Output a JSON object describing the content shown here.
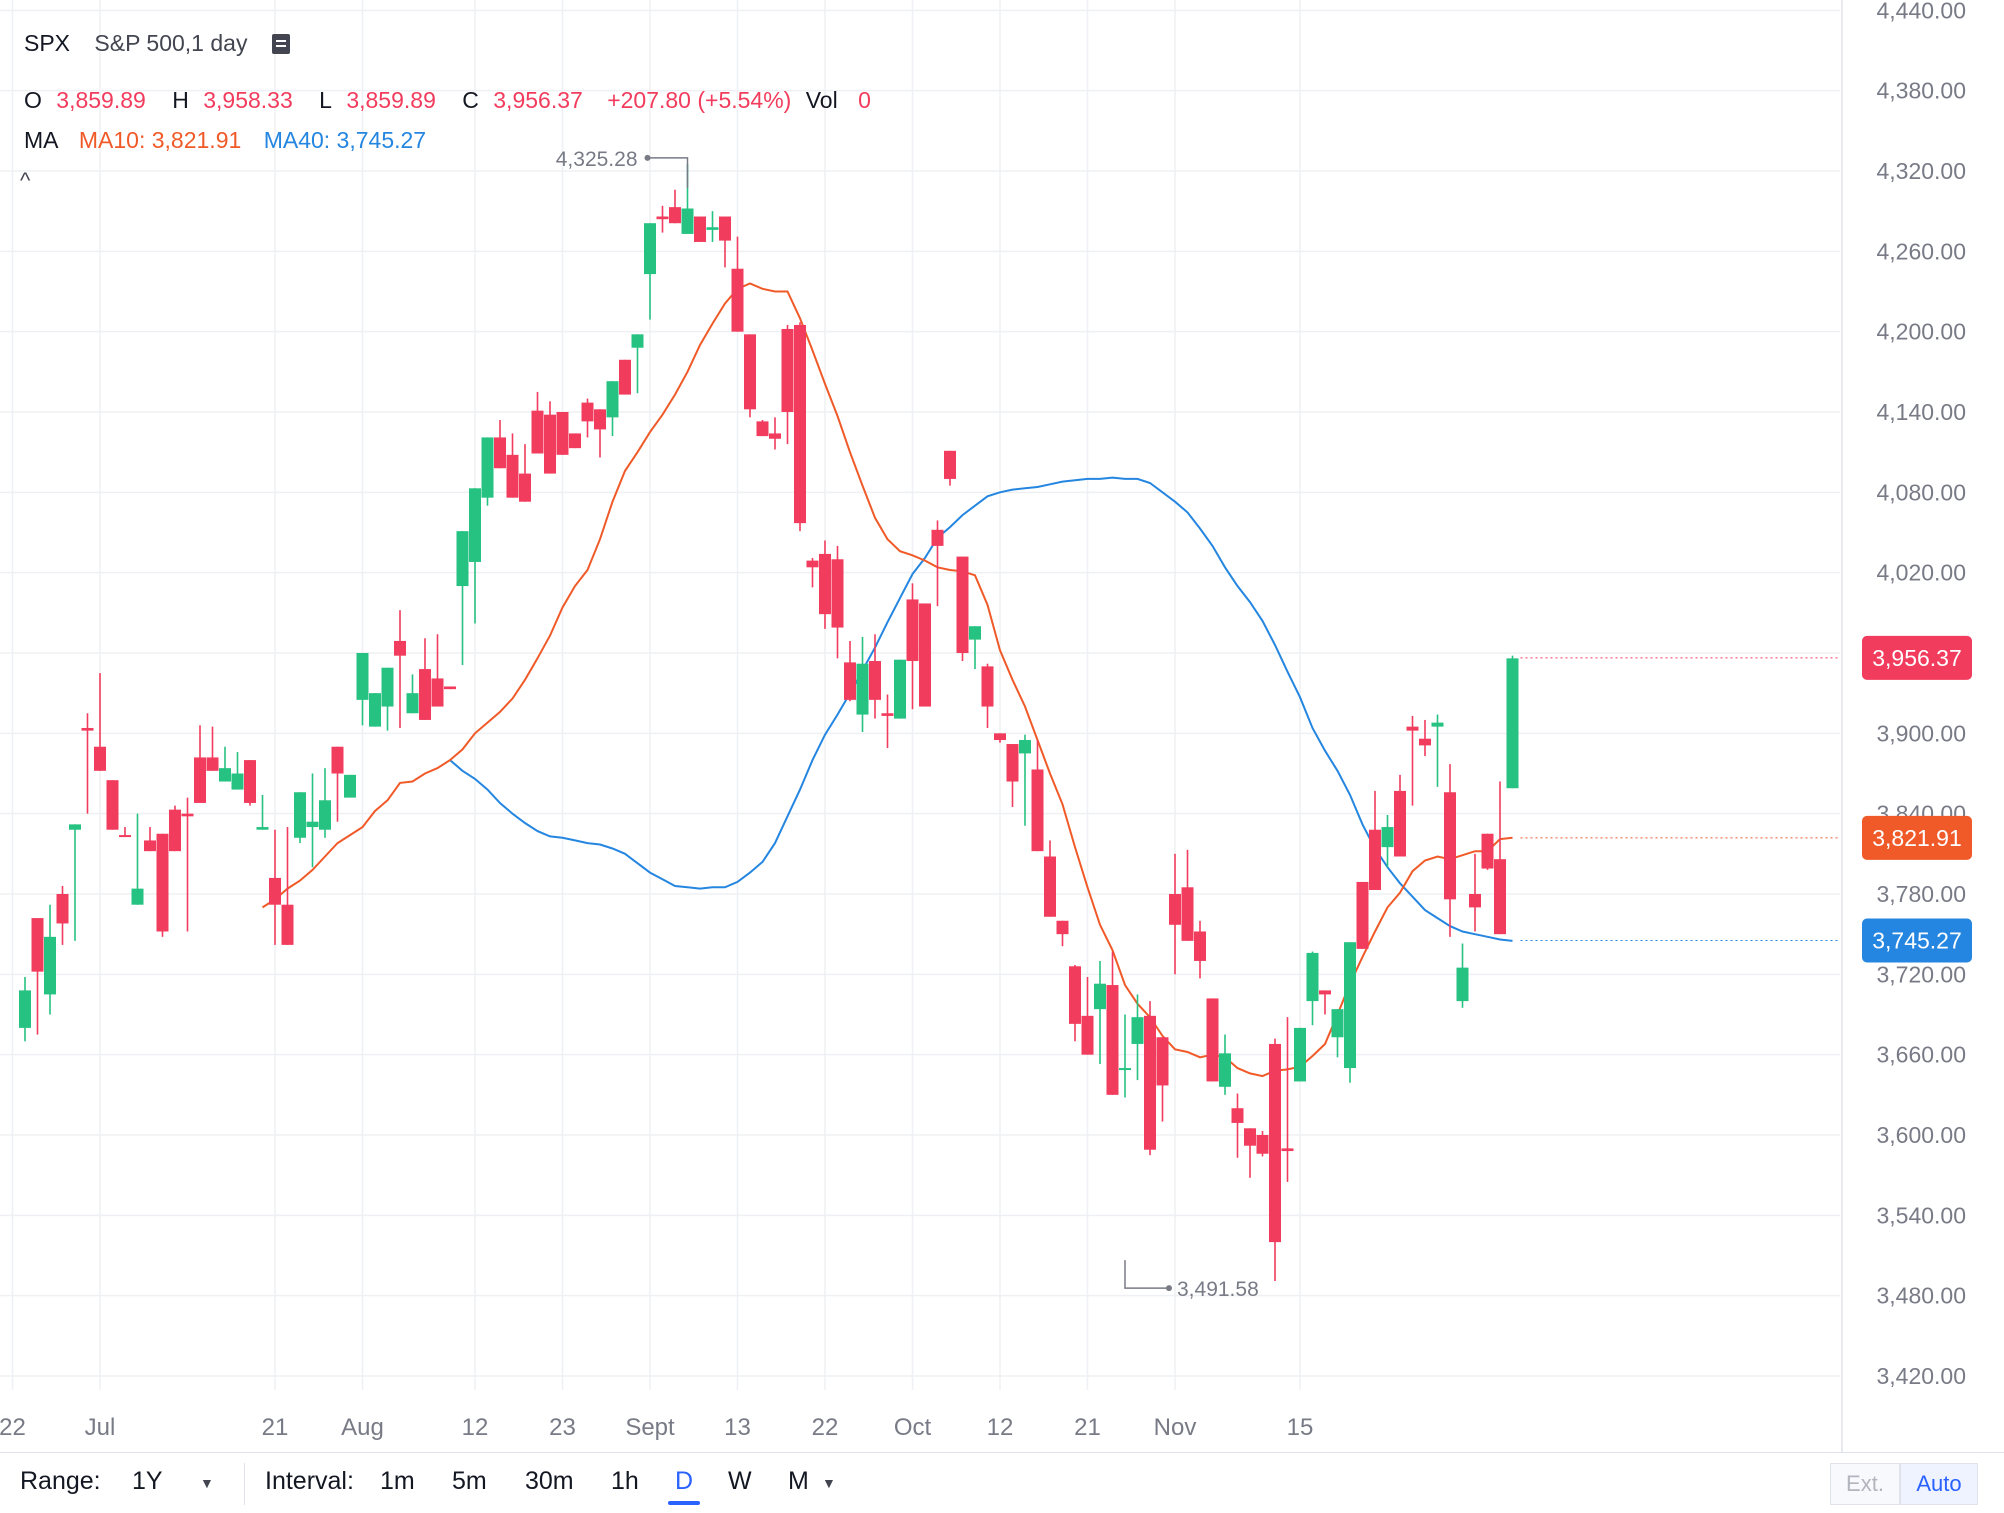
{
  "header": {
    "symbol": "SPX",
    "description": "S&P 500,1 day",
    "ohlc": {
      "o_label": "O",
      "o_value": "3,859.89",
      "h_label": "H",
      "h_value": "3,958.33",
      "l_label": "L",
      "l_value": "3,859.89",
      "c_label": "C",
      "c_value": "3,956.37",
      "change": "+207.80 (+5.54%)",
      "vol_label": "Vol",
      "vol_value": "0"
    },
    "ma": {
      "label": "MA",
      "ma10": "MA10: 3,821.91",
      "ma40": "MA40: 3,745.27"
    },
    "collapse_glyph": "^"
  },
  "colors": {
    "up": "#26c281",
    "down": "#f23c5d",
    "ma10": "#f05a28",
    "ma40": "#2486e0",
    "grid": "#eef0f4",
    "text_muted": "#787b86"
  },
  "chart_data": {
    "type": "candlestick",
    "ylim": [
      3395,
      4445
    ],
    "y_ticks": [
      "3,420.00",
      "3,480.00",
      "3,540.00",
      "3,600.00",
      "3,660.00",
      "3,720.00",
      "3,780.00",
      "3,840.00",
      "3,900.00",
      "3,960.00",
      "4,020.00",
      "4,080.00",
      "4,140.00",
      "4,200.00",
      "4,260.00",
      "4,320.00",
      "4,380.00",
      "4,440.00"
    ],
    "x_labels": [
      {
        "label": "22",
        "i": -1
      },
      {
        "label": "Jul",
        "i": 6
      },
      {
        "label": "21",
        "i": 20
      },
      {
        "label": "Aug",
        "i": 27
      },
      {
        "label": "12",
        "i": 36
      },
      {
        "label": "23",
        "i": 43
      },
      {
        "label": "Sept",
        "i": 50
      },
      {
        "label": "13",
        "i": 57
      },
      {
        "label": "22",
        "i": 64
      },
      {
        "label": "Oct",
        "i": 71
      },
      {
        "label": "12",
        "i": 78
      },
      {
        "label": "21",
        "i": 85
      },
      {
        "label": "Nov",
        "i": 92
      },
      {
        "label": "15",
        "i": 102
      }
    ],
    "candles": [
      [
        3680,
        3718,
        3670,
        3708
      ],
      [
        3762,
        3762,
        3675,
        3722
      ],
      [
        3705,
        3772,
        3690,
        3748
      ],
      [
        3780,
        3786,
        3742,
        3758
      ],
      [
        3828,
        3828,
        3745,
        3832
      ],
      [
        3904,
        3915,
        3840,
        3902
      ],
      [
        3890,
        3945,
        3880,
        3872
      ],
      [
        3865,
        3865,
        3836,
        3828
      ],
      [
        3824,
        3830,
        3824,
        3823
      ],
      [
        3772,
        3840,
        3830,
        3784
      ],
      [
        3820,
        3830,
        3834,
        3812
      ],
      [
        3825,
        3814,
        3748,
        3752
      ],
      [
        3843,
        3846,
        3828,
        3812
      ],
      [
        3840,
        3852,
        3752,
        3838
      ],
      [
        3882,
        3906,
        3862,
        3848
      ],
      [
        3882,
        3905,
        3886,
        3872
      ],
      [
        3864,
        3890,
        3888,
        3874
      ],
      [
        3858,
        3886,
        3882,
        3870
      ],
      [
        3880,
        3874,
        3846,
        3848
      ],
      [
        3828,
        3854,
        3830,
        3830
      ],
      [
        3792,
        3828,
        3742,
        3772
      ],
      [
        3772,
        3830,
        3816,
        3742
      ],
      [
        3822,
        3832,
        3818,
        3856
      ],
      [
        3830,
        3870,
        3800,
        3834
      ],
      [
        3828,
        3874,
        3822,
        3850
      ],
      [
        3890,
        3888,
        3834,
        3870
      ],
      [
        3852,
        3850,
        3854,
        3869
      ],
      [
        3925,
        3924,
        3906,
        3960
      ],
      [
        3905,
        3924,
        3922,
        3930
      ],
      [
        3920,
        3930,
        3902,
        3949
      ],
      [
        3969,
        3992,
        3904,
        3958
      ],
      [
        3915,
        3944,
        3952,
        3930
      ],
      [
        3948,
        3971,
        3940,
        3910
      ],
      [
        3941,
        3974,
        3953,
        3920
      ],
      [
        3935,
        3934,
        3933,
        3933
      ],
      [
        4010,
        3990,
        3951,
        4051
      ],
      [
        4028,
        4051,
        3982,
        4083
      ],
      [
        4076,
        4084,
        4070,
        4121
      ],
      [
        4121,
        4134,
        4117,
        4098
      ],
      [
        4108,
        4124,
        4083,
        4076
      ],
      [
        4094,
        4116,
        4078,
        4073
      ],
      [
        4141,
        4155,
        4125,
        4109
      ],
      [
        4138,
        4148,
        4143,
        4094
      ],
      [
        4140,
        4123,
        4119,
        4108
      ],
      [
        4124,
        4123,
        4120,
        4113
      ],
      [
        4147,
        4150,
        4121,
        4133
      ],
      [
        4142,
        4131,
        4106,
        4127
      ],
      [
        4136,
        4152,
        4122,
        4163
      ],
      [
        4179,
        4178,
        4170,
        4153
      ],
      [
        4188,
        4176,
        4154,
        4198
      ],
      [
        4243,
        4234,
        4209,
        4281
      ],
      [
        4286,
        4294,
        4274,
        4284
      ],
      [
        4293,
        4306,
        4285,
        4281
      ],
      [
        4273,
        4325,
        4275,
        4292
      ],
      [
        4286,
        4286,
        4277,
        4267
      ],
      [
        4276,
        4290,
        4267,
        4278
      ],
      [
        4286,
        4282,
        4248,
        4268
      ],
      [
        4247,
        4271,
        4237,
        4200
      ],
      [
        4198,
        4198,
        4136,
        4142
      ],
      [
        4133,
        4134,
        4126,
        4122
      ],
      [
        4124,
        4136,
        4112,
        4120
      ],
      [
        4202,
        4205,
        4116,
        4140
      ],
      [
        4205,
        4207,
        4051,
        4057
      ],
      [
        4029,
        4031,
        4009,
        4024
      ],
      [
        4034,
        4044,
        3978,
        3989
      ],
      [
        4030,
        4040,
        3956,
        3979
      ],
      [
        3953,
        3969,
        3924,
        3925
      ],
      [
        3914,
        3972,
        3901,
        3952
      ],
      [
        3954,
        3974,
        3911,
        3925
      ],
      [
        3915,
        3929,
        3889,
        3913
      ],
      [
        3911,
        3933,
        3914,
        3955
      ],
      [
        4000,
        4012,
        3918,
        3954
      ],
      [
        3997,
        3971,
        3960,
        3920
      ],
      [
        4052,
        4059,
        3995,
        4040
      ],
      [
        4111,
        4102,
        4085,
        4090
      ],
      [
        4032,
        4013,
        3954,
        3960
      ],
      [
        3970,
        3970,
        3948,
        3980
      ],
      [
        3950,
        3952,
        3904,
        3920
      ],
      [
        3900,
        3894,
        3893,
        3895
      ],
      [
        3892,
        3885,
        3845,
        3864
      ],
      [
        3885,
        3899,
        3831,
        3895
      ],
      [
        3873,
        3895,
        3869,
        3812
      ],
      [
        3808,
        3820,
        3798,
        3763
      ],
      [
        3760,
        3758,
        3741,
        3750
      ],
      [
        3726,
        3727,
        3670,
        3683
      ],
      [
        3689,
        3718,
        3677,
        3660
      ],
      [
        3694,
        3730,
        3653,
        3713
      ],
      [
        3712,
        3737,
        3638,
        3630
      ],
      [
        3650,
        3690,
        3628,
        3650
      ],
      [
        3668,
        3705,
        3641,
        3688
      ],
      [
        3689,
        3700,
        3585,
        3589
      ],
      [
        3673,
        3657,
        3610,
        3637
      ],
      [
        3780,
        3810,
        3720,
        3757
      ],
      [
        3785,
        3813,
        3763,
        3745
      ],
      [
        3752,
        3760,
        3717,
        3730
      ],
      [
        3702,
        3701,
        3654,
        3640
      ],
      [
        3636,
        3675,
        3630,
        3661
      ],
      [
        3620,
        3631,
        3583,
        3609
      ],
      [
        3605,
        3605,
        3568,
        3592
      ],
      [
        3600,
        3603,
        3584,
        3586
      ],
      [
        3668,
        3672,
        3491,
        3520
      ],
      [
        3590,
        3688,
        3565,
        3588
      ],
      [
        3640,
        3668,
        3658,
        3680
      ],
      [
        3700,
        3737,
        3682,
        3736
      ],
      [
        3708,
        3706,
        3690,
        3705
      ],
      [
        3673,
        3680,
        3658,
        3694
      ],
      [
        3650,
        3718,
        3639,
        3744
      ],
      [
        3789,
        3763,
        3743,
        3739
      ],
      [
        3828,
        3857,
        3783,
        3783
      ],
      [
        3815,
        3839,
        3800,
        3830
      ],
      [
        3857,
        3869,
        3808,
        3808
      ],
      [
        3905,
        3913,
        3846,
        3902
      ],
      [
        3896,
        3910,
        3883,
        3891
      ],
      [
        3905,
        3914,
        3860,
        3908
      ],
      [
        3856,
        3877,
        3748,
        3776
      ],
      [
        3700,
        3743,
        3695,
        3725
      ],
      [
        3780,
        3810,
        3752,
        3770
      ],
      [
        3825,
        3822,
        3798,
        3799
      ],
      [
        3806,
        3864,
        3760,
        3750
      ],
      [
        3859,
        3958,
        3859,
        3956
      ]
    ],
    "ma10": [
      3770,
      3776,
      3784,
      3790,
      3798,
      3808,
      3818,
      3824,
      3830,
      3842,
      3850,
      3863,
      3864,
      3870,
      3874,
      3880,
      3888,
      3900,
      3908,
      3916,
      3926,
      3940,
      3956,
      3973,
      3994,
      4010,
      4022,
      4045,
      4073,
      4096,
      4110,
      4125,
      4138,
      4153,
      4170,
      4190,
      4206,
      4221,
      4232,
      4236,
      4232,
      4230,
      4230,
      4210,
      4186,
      4161,
      4137,
      4110,
      4085,
      4061,
      4045,
      4036,
      4033,
      4029,
      4024,
      4022,
      4021,
      4018,
      3996,
      3962,
      3940,
      3920,
      3895,
      3870,
      3847,
      3815,
      3785,
      3757,
      3738,
      3712,
      3698,
      3688,
      3674,
      3664,
      3662,
      3658,
      3660,
      3658,
      3650,
      3646,
      3644,
      3648,
      3649,
      3651,
      3659,
      3668,
      3690,
      3713,
      3733,
      3752,
      3770,
      3781,
      3797,
      3805,
      3808,
      3806,
      3809,
      3812,
      3812,
      3821,
      3822
    ],
    "ma40": [
      3880,
      3872,
      3866,
      3858,
      3848,
      3840,
      3833,
      3827,
      3823,
      3822,
      3820,
      3818,
      3817,
      3814,
      3810,
      3803,
      3796,
      3791,
      3786,
      3785,
      3784,
      3785,
      3785,
      3789,
      3796,
      3804,
      3818,
      3838,
      3858,
      3880,
      3899,
      3914,
      3930,
      3947,
      3964,
      3983,
      4001,
      4019,
      4031,
      4046,
      4054,
      4063,
      4070,
      4077,
      4080,
      4082,
      4083,
      4084,
      4086,
      4088,
      4089,
      4090,
      4090,
      4091,
      4090,
      4090,
      4087,
      4080,
      4073,
      4065,
      4053,
      4040,
      4024,
      4010,
      3998,
      3984,
      3966,
      3946,
      3927,
      3904,
      3887,
      3872,
      3854,
      3832,
      3814,
      3800,
      3788,
      3778,
      3768,
      3762,
      3756,
      3752,
      3750,
      3748,
      3746,
      3745
    ],
    "annotations": {
      "max_label": "4,325.28",
      "min_label": "3,491.58"
    },
    "price_tags": {
      "last": "3,956.37",
      "ma10": "3,821.91",
      "ma40": "3,745.27"
    }
  },
  "toolbar": {
    "range_label": "Range:",
    "range_value": "1Y",
    "interval_label": "Interval:",
    "intervals": [
      "1m",
      "5m",
      "30m",
      "1h",
      "D",
      "W",
      "M"
    ],
    "active_interval": "D",
    "ext_label": "Ext.",
    "auto_label": "Auto"
  }
}
